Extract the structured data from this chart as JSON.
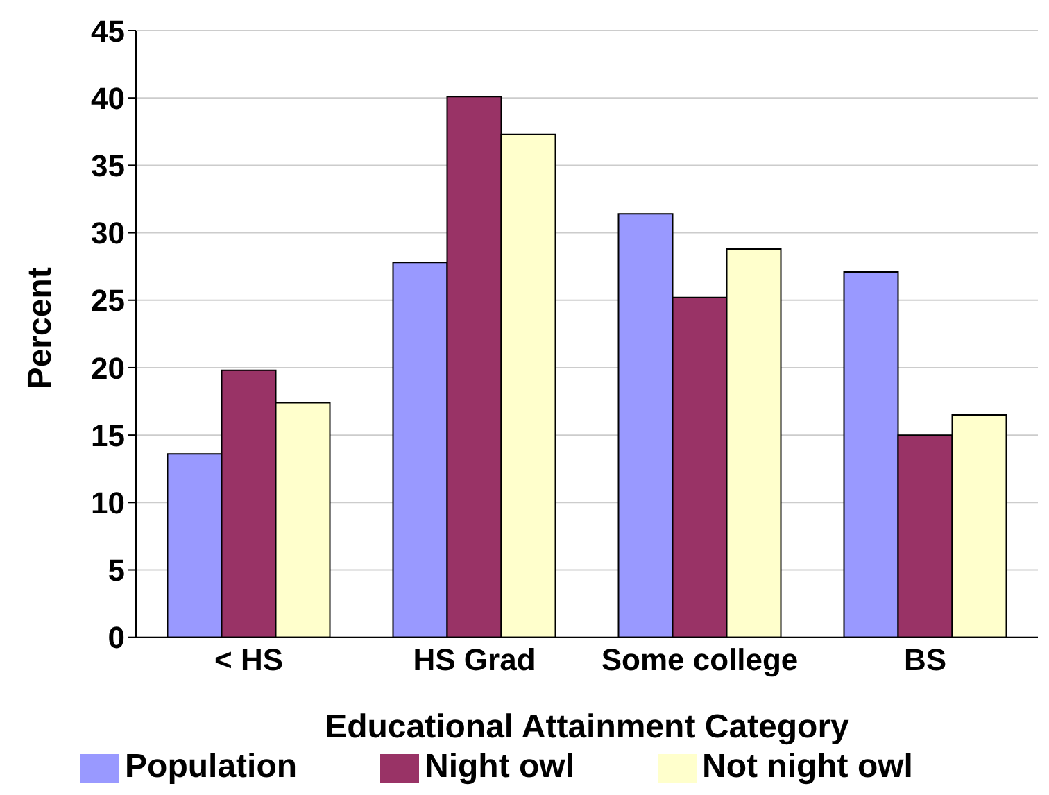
{
  "chart_data": {
    "type": "bar",
    "xlabel": "Educational Attainment Category",
    "ylabel": "Percent",
    "categories": [
      "< HS",
      "HS Grad",
      "Some college",
      "BS"
    ],
    "series": [
      {
        "name": "Population",
        "color": "#9999ff",
        "values": [
          13.6,
          27.8,
          31.4,
          27.1
        ]
      },
      {
        "name": "Night owl",
        "color": "#993366",
        "values": [
          19.8,
          40.1,
          25.2,
          15.0
        ]
      },
      {
        "name": "Not night owl",
        "color": "#ffffcc",
        "values": [
          17.4,
          37.3,
          28.8,
          16.5
        ]
      }
    ],
    "ylim": [
      0,
      45
    ],
    "yticks": [
      0,
      5,
      10,
      15,
      20,
      25,
      30,
      35,
      40,
      45
    ],
    "grid": "y",
    "legend": "bottom"
  }
}
